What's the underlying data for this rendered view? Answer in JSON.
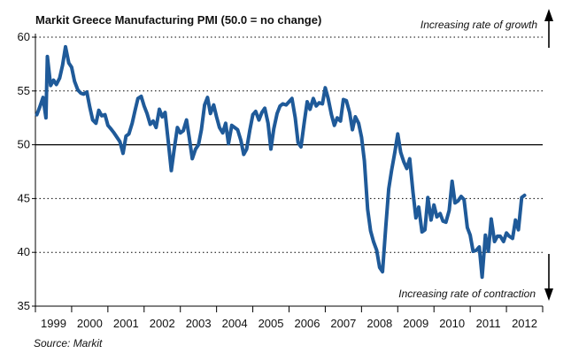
{
  "chart_data": {
    "type": "line",
    "title": "Markit Greece Manufacturing PMI (50.0 = no change)",
    "source": "Source: Markit",
    "annotations": {
      "top": "Increasing rate of growth",
      "bottom": "Increasing rate of contraction"
    },
    "xlabel": "",
    "ylabel": "",
    "ylim": [
      35,
      61
    ],
    "y_ticks": [
      35,
      40,
      45,
      50,
      55,
      60
    ],
    "reference_line": 50,
    "dotted_gridlines": [
      40,
      45,
      55,
      60
    ],
    "legend": "none",
    "x_tick_labels": [
      "1999",
      "2000",
      "2001",
      "2002",
      "2003",
      "2004",
      "2005",
      "2006",
      "2007",
      "2008",
      "2009",
      "2010",
      "2011",
      "2012"
    ],
    "xlim": [
      1999.0,
      2013.0
    ],
    "colors": {
      "line": "#1f5a99",
      "axis": "#000000",
      "grid": "#000000"
    },
    "series": [
      {
        "values": [
          [
            1999.04,
            52.8
          ],
          [
            1999.12,
            53.5
          ],
          [
            1999.21,
            54.4
          ],
          [
            1999.29,
            52.5
          ],
          [
            1999.33,
            58.2
          ],
          [
            1999.42,
            55.5
          ],
          [
            1999.5,
            56.0
          ],
          [
            1999.58,
            55.6
          ],
          [
            1999.67,
            56.2
          ],
          [
            1999.75,
            57.4
          ],
          [
            1999.83,
            59.1
          ],
          [
            1999.92,
            57.6
          ],
          [
            2000.0,
            57.2
          ],
          [
            2000.08,
            55.9
          ],
          [
            2000.17,
            55.1
          ],
          [
            2000.25,
            54.8
          ],
          [
            2000.33,
            54.7
          ],
          [
            2000.42,
            54.9
          ],
          [
            2000.5,
            53.5
          ],
          [
            2000.58,
            52.3
          ],
          [
            2000.67,
            52.0
          ],
          [
            2000.75,
            53.2
          ],
          [
            2000.83,
            52.7
          ],
          [
            2000.92,
            52.8
          ],
          [
            2001.0,
            51.8
          ],
          [
            2001.08,
            51.5
          ],
          [
            2001.17,
            51.1
          ],
          [
            2001.25,
            50.7
          ],
          [
            2001.33,
            50.3
          ],
          [
            2001.42,
            49.2
          ],
          [
            2001.5,
            50.8
          ],
          [
            2001.58,
            51.0
          ],
          [
            2001.67,
            52.0
          ],
          [
            2001.75,
            53.2
          ],
          [
            2001.83,
            54.3
          ],
          [
            2001.92,
            54.5
          ],
          [
            2002.0,
            53.6
          ],
          [
            2002.08,
            52.9
          ],
          [
            2002.17,
            51.9
          ],
          [
            2002.25,
            52.2
          ],
          [
            2002.33,
            51.6
          ],
          [
            2002.42,
            53.3
          ],
          [
            2002.5,
            52.6
          ],
          [
            2002.58,
            53.0
          ],
          [
            2002.67,
            50.2
          ],
          [
            2002.75,
            47.6
          ],
          [
            2002.83,
            49.6
          ],
          [
            2002.92,
            51.6
          ],
          [
            2003.0,
            51.1
          ],
          [
            2003.08,
            51.3
          ],
          [
            2003.17,
            52.3
          ],
          [
            2003.25,
            50.6
          ],
          [
            2003.33,
            48.7
          ],
          [
            2003.42,
            49.6
          ],
          [
            2003.5,
            50.0
          ],
          [
            2003.58,
            51.4
          ],
          [
            2003.67,
            53.7
          ],
          [
            2003.75,
            54.4
          ],
          [
            2003.83,
            52.9
          ],
          [
            2003.92,
            53.7
          ],
          [
            2004.0,
            52.6
          ],
          [
            2004.08,
            51.6
          ],
          [
            2004.17,
            51.1
          ],
          [
            2004.25,
            52.0
          ],
          [
            2004.33,
            50.1
          ],
          [
            2004.42,
            51.8
          ],
          [
            2004.5,
            51.6
          ],
          [
            2004.58,
            51.4
          ],
          [
            2004.67,
            50.4
          ],
          [
            2004.75,
            49.1
          ],
          [
            2004.83,
            49.6
          ],
          [
            2004.92,
            51.4
          ],
          [
            2005.0,
            52.8
          ],
          [
            2005.08,
            53.1
          ],
          [
            2005.17,
            52.3
          ],
          [
            2005.25,
            53.0
          ],
          [
            2005.33,
            53.4
          ],
          [
            2005.42,
            52.0
          ],
          [
            2005.5,
            49.6
          ],
          [
            2005.58,
            51.5
          ],
          [
            2005.67,
            52.9
          ],
          [
            2005.75,
            53.6
          ],
          [
            2005.83,
            53.8
          ],
          [
            2005.92,
            53.7
          ],
          [
            2006.0,
            54.0
          ],
          [
            2006.08,
            54.3
          ],
          [
            2006.17,
            52.5
          ],
          [
            2006.25,
            50.2
          ],
          [
            2006.33,
            49.8
          ],
          [
            2006.42,
            52.1
          ],
          [
            2006.5,
            54.0
          ],
          [
            2006.58,
            53.3
          ],
          [
            2006.67,
            54.3
          ],
          [
            2006.75,
            53.6
          ],
          [
            2006.83,
            53.9
          ],
          [
            2006.92,
            53.8
          ],
          [
            2007.0,
            55.3
          ],
          [
            2007.08,
            54.3
          ],
          [
            2007.17,
            52.8
          ],
          [
            2007.25,
            51.8
          ],
          [
            2007.33,
            52.5
          ],
          [
            2007.42,
            52.2
          ],
          [
            2007.5,
            54.2
          ],
          [
            2007.58,
            54.1
          ],
          [
            2007.67,
            53.0
          ],
          [
            2007.75,
            51.4
          ],
          [
            2007.83,
            52.6
          ],
          [
            2007.92,
            52.0
          ],
          [
            2008.0,
            50.7
          ],
          [
            2008.08,
            48.5
          ],
          [
            2008.17,
            44.0
          ],
          [
            2008.25,
            42.0
          ],
          [
            2008.33,
            41.0
          ],
          [
            2008.42,
            40.2
          ],
          [
            2008.5,
            38.6
          ],
          [
            2008.58,
            38.2
          ],
          [
            2008.67,
            42.4
          ],
          [
            2008.75,
            45.9
          ],
          [
            2008.83,
            47.6
          ],
          [
            2008.92,
            49.3
          ],
          [
            2009.0,
            51.0
          ],
          [
            2009.08,
            49.3
          ],
          [
            2009.17,
            48.4
          ],
          [
            2009.25,
            47.8
          ],
          [
            2009.33,
            48.7
          ],
          [
            2009.42,
            45.6
          ],
          [
            2009.5,
            43.2
          ],
          [
            2009.58,
            44.2
          ],
          [
            2009.67,
            41.9
          ],
          [
            2009.75,
            42.1
          ],
          [
            2009.83,
            45.1
          ],
          [
            2009.92,
            43.0
          ],
          [
            2010.0,
            44.4
          ],
          [
            2010.08,
            43.3
          ],
          [
            2010.17,
            43.6
          ],
          [
            2010.25,
            42.9
          ],
          [
            2010.33,
            42.8
          ],
          [
            2010.42,
            43.9
          ],
          [
            2010.5,
            46.6
          ],
          [
            2010.58,
            44.6
          ],
          [
            2010.67,
            44.8
          ],
          [
            2010.75,
            45.2
          ],
          [
            2010.83,
            44.9
          ],
          [
            2010.92,
            42.3
          ],
          [
            2011.0,
            41.6
          ],
          [
            2011.08,
            40.1
          ],
          [
            2011.17,
            40.2
          ],
          [
            2011.25,
            40.5
          ],
          [
            2011.33,
            37.7
          ],
          [
            2011.42,
            41.6
          ],
          [
            2011.5,
            40.1
          ],
          [
            2011.58,
            43.1
          ],
          [
            2011.67,
            41.0
          ],
          [
            2011.75,
            41.5
          ],
          [
            2011.83,
            41.5
          ],
          [
            2011.92,
            41.0
          ],
          [
            2012.0,
            41.8
          ],
          [
            2012.08,
            41.5
          ],
          [
            2012.17,
            41.3
          ],
          [
            2012.25,
            43.0
          ],
          [
            2012.33,
            42.1
          ],
          [
            2012.42,
            45.1
          ],
          [
            2012.5,
            45.3
          ]
        ]
      }
    ]
  }
}
